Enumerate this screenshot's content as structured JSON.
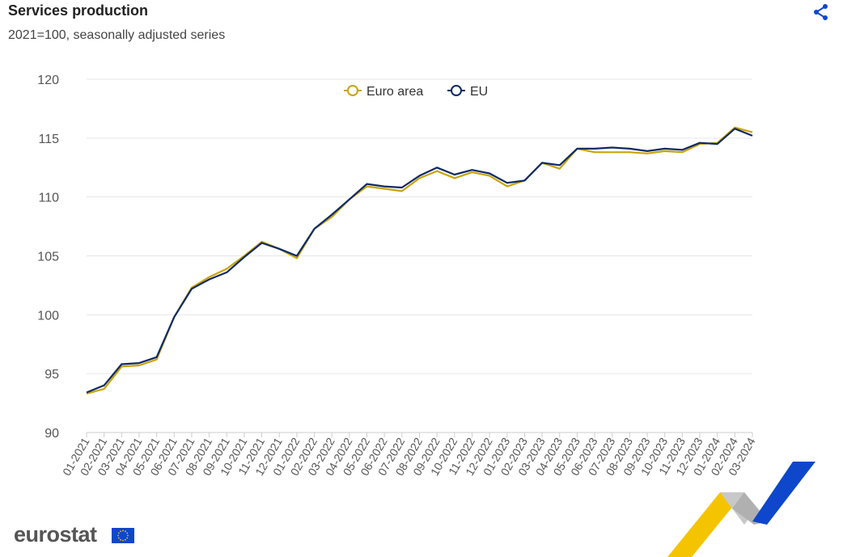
{
  "header": {
    "title": "Services production",
    "subtitle": "2021=100, seasonally adjusted series",
    "share_icon": "share-icon"
  },
  "legend": {
    "items": [
      {
        "label": "Euro area",
        "color": "#c9a408"
      },
      {
        "label": "EU",
        "color": "#0e2a66"
      }
    ]
  },
  "footer": {
    "logo_text": "eurostat",
    "flag_icon": "eu-flag-icon"
  },
  "colors": {
    "euro_area": "#c9a408",
    "eu": "#0e2a66",
    "grid": "#e6e6e6",
    "deco_yellow": "#f5c400",
    "deco_blue": "#0e47cb",
    "deco_grey": "#b3b3b3"
  },
  "chart_data": {
    "type": "line",
    "title": "Services production",
    "subtitle": "2021=100, seasonally adjusted series",
    "xlabel": "",
    "ylabel": "",
    "ylim": [
      90,
      120
    ],
    "yticks": [
      90,
      95,
      100,
      105,
      110,
      115,
      120
    ],
    "grid": true,
    "legend_position": "top-center",
    "categories": [
      "01-2021",
      "02-2021",
      "03-2021",
      "04-2021",
      "05-2021",
      "06-2021",
      "07-2021",
      "08-2021",
      "09-2021",
      "10-2021",
      "11-2021",
      "12-2021",
      "01-2022",
      "02-2022",
      "03-2022",
      "04-2022",
      "05-2022",
      "06-2022",
      "07-2022",
      "08-2022",
      "09-2022",
      "10-2022",
      "11-2022",
      "12-2022",
      "01-2023",
      "02-2023",
      "03-2023",
      "04-2023",
      "05-2023",
      "06-2023",
      "07-2023",
      "08-2023",
      "09-2023",
      "10-2023",
      "11-2023",
      "12-2023",
      "01-2024",
      "02-2024",
      "03-2024"
    ],
    "series": [
      {
        "name": "Euro area",
        "color": "#c9a408",
        "values": [
          93.3,
          93.7,
          95.6,
          95.7,
          96.2,
          99.8,
          102.3,
          103.2,
          103.9,
          105.0,
          106.2,
          105.6,
          104.8,
          107.3,
          108.3,
          109.8,
          110.9,
          110.7,
          110.5,
          111.6,
          112.2,
          111.6,
          112.1,
          111.8,
          110.9,
          111.4,
          112.9,
          112.4,
          114.1,
          113.8,
          113.8,
          113.8,
          113.7,
          113.9,
          113.8,
          114.5,
          114.6,
          115.9,
          115.5
        ]
      },
      {
        "name": "EU",
        "color": "#0e2a66",
        "values": [
          93.4,
          94.0,
          95.8,
          95.9,
          96.4,
          99.8,
          102.2,
          103.0,
          103.6,
          104.9,
          106.1,
          105.6,
          105.0,
          107.3,
          108.5,
          109.8,
          111.1,
          110.9,
          110.8,
          111.8,
          112.5,
          111.9,
          112.3,
          112.0,
          111.2,
          111.4,
          112.9,
          112.7,
          114.1,
          114.1,
          114.2,
          114.1,
          113.9,
          114.1,
          114.0,
          114.6,
          114.5,
          115.8,
          115.2
        ]
      }
    ]
  }
}
